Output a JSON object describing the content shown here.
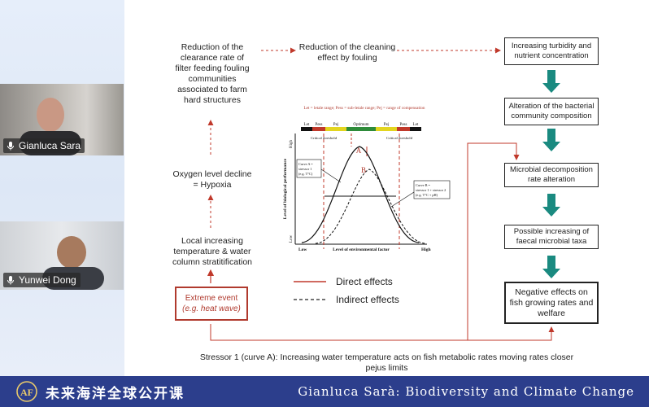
{
  "participants": [
    {
      "name": "Gianluca Sara"
    },
    {
      "name": "Yunwei Dong"
    }
  ],
  "slide": {
    "left_chain": {
      "reduction_clearance": "Reduction of the clearance rate of filter feeding fouling communities associated to farm hard structures",
      "oxygen": "Oxygen level decline = Hypoxia",
      "local_increasing": "Local increasing temperature & water column stratitification",
      "extreme_event": "Extreme event",
      "extreme_event_example": "(e.g. heat wave)"
    },
    "cleaning": "Reduction of the cleaning effect by fouling",
    "right_chain": [
      "Increasing turbidity and nutrient concentration",
      "Alteration of the bacterial community composition",
      "Microbial decomposition rate alteration",
      "Possible increasing of faecal microbial taxa",
      "Negative effects on fish growing rates and welfare"
    ],
    "legend": {
      "direct": "Direct effects",
      "indirect": "Indirect effects"
    },
    "caption_line1": "Stressor 1 (curve A): Increasing water temperature acts on fish metabolic rates moving rates closer",
    "caption_line2": "pejus limits"
  },
  "graph": {
    "header": "Let = letale range; Pess = sub-letale range; Pej = range of compensation",
    "bar_labels": [
      "Let",
      "Pess",
      "Pej",
      "Optimum",
      "Pej",
      "Pess",
      "Let"
    ],
    "threshold_left": "Critical threshold",
    "threshold_right": "Critical threshold",
    "curve_a": "A",
    "curve_b": "B",
    "ylabel": "Level of biological performance",
    "y_high": "High",
    "y_low": "Low",
    "x_low": "Low",
    "x_high": "High",
    "xlabel": "Level of environmental factor",
    "note_a": [
      "Curve A =",
      "stressor 1",
      "(e.g. T°C)"
    ],
    "note_b": [
      "Curve B =",
      "stressor 1 + stressor 2",
      "(e.g. T°C + pH)"
    ]
  },
  "footer": {
    "cn_title": "未来海洋全球公开课",
    "lecture": "Gianluca Sarà: Biodiversity and Climate Change"
  },
  "colors": {
    "arrow_red": "#c0392b",
    "teal": "#1a8a80",
    "footer_bg": "#2c3e8c"
  }
}
